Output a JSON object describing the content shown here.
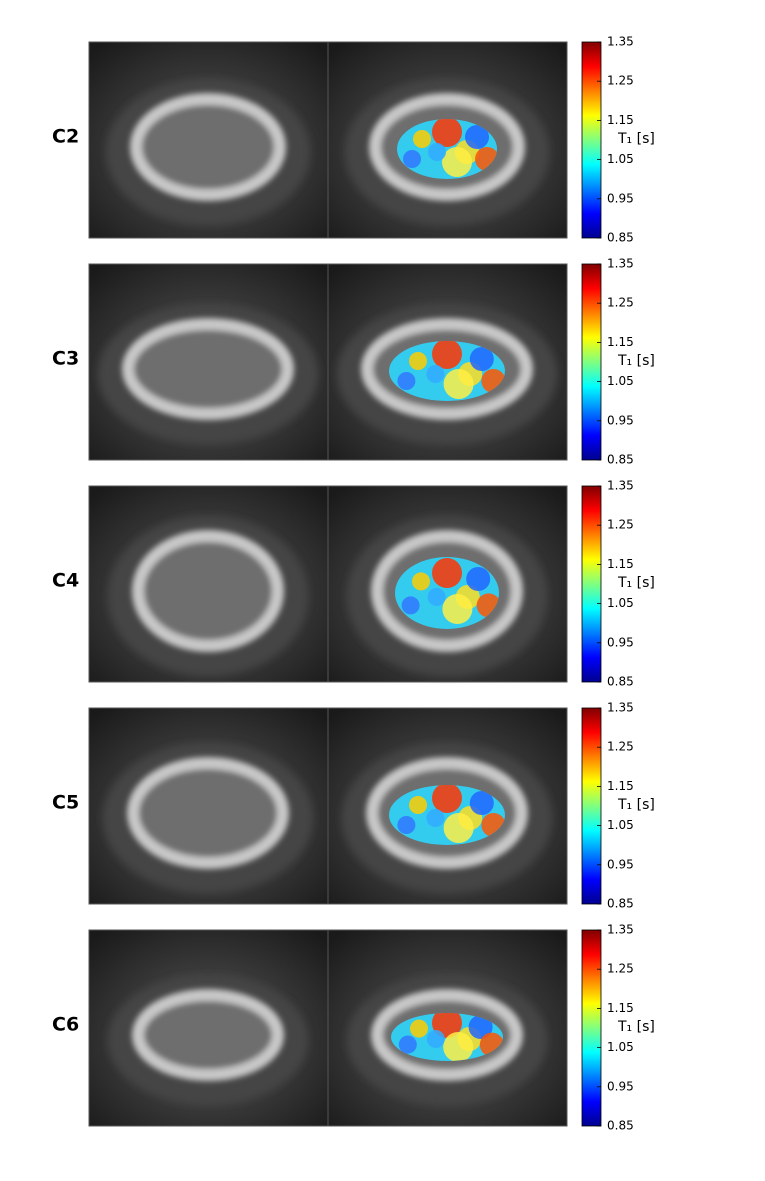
{
  "panels": [
    {
      "label": "C2"
    },
    {
      "label": "C3"
    },
    {
      "label": "C4"
    },
    {
      "label": "C5"
    },
    {
      "label": "C6"
    }
  ],
  "colorbar": {
    "label": "T₁ [s]",
    "lim": [
      0.85,
      1.35
    ],
    "ticks": [
      0.85,
      0.95,
      1.05,
      1.15,
      1.25,
      1.35
    ]
  }
}
